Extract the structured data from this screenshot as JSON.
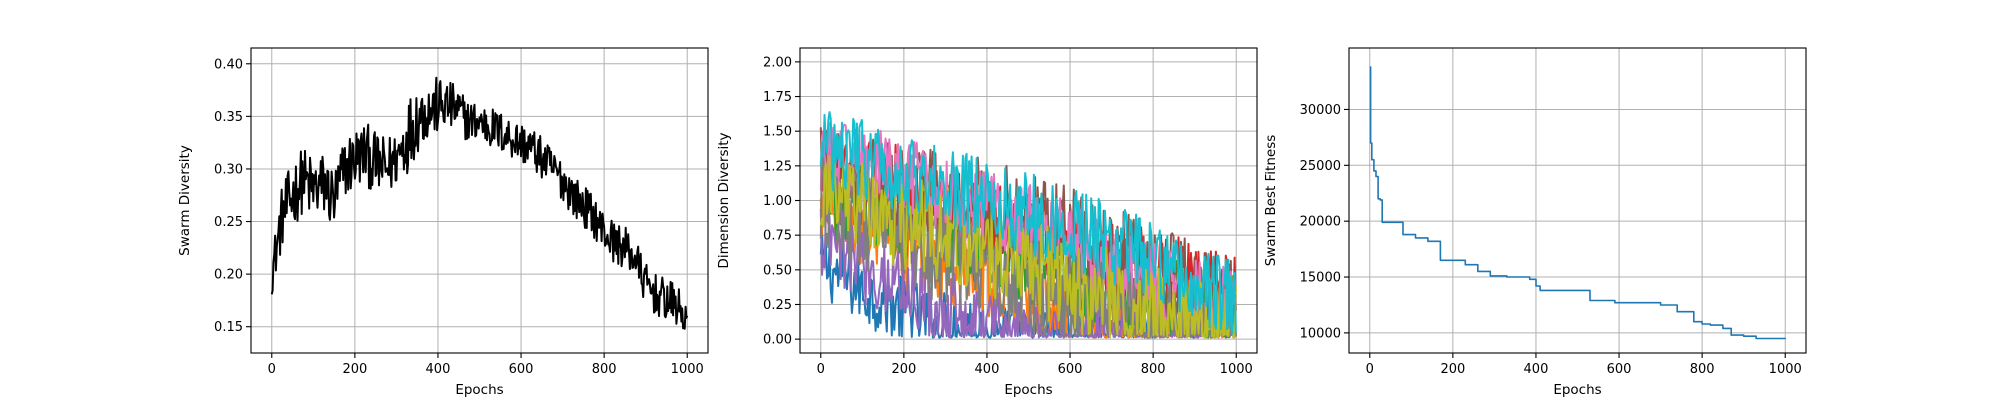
{
  "chart_data": [
    {
      "type": "line",
      "xlabel": "Epochs",
      "ylabel": "Swarm Diversity",
      "xlim": [
        -50,
        1050
      ],
      "ylim": [
        0.125,
        0.415
      ],
      "xticks": [
        0,
        200,
        400,
        600,
        800,
        1000
      ],
      "yticks": [
        0.15,
        0.2,
        0.25,
        0.3,
        0.35,
        0.4
      ],
      "ytick_labels": [
        "0.15",
        "0.20",
        "0.25",
        "0.30",
        "0.35",
        "0.40"
      ],
      "grid": true,
      "colors": {
        "line": "#000000"
      },
      "series": [
        {
          "x": [
            0,
            25,
            50,
            75,
            100,
            125,
            150,
            175,
            200,
            225,
            250,
            275,
            300,
            325,
            350,
            375,
            400,
            425,
            450,
            475,
            500,
            525,
            550,
            575,
            600,
            625,
            650,
            675,
            700,
            725,
            750,
            775,
            800,
            825,
            850,
            875,
            900,
            925,
            950,
            975,
            1000
          ],
          "y": [
            0.2,
            0.255,
            0.275,
            0.29,
            0.28,
            0.285,
            0.27,
            0.3,
            0.31,
            0.315,
            0.305,
            0.3,
            0.31,
            0.33,
            0.35,
            0.355,
            0.36,
            0.36,
            0.355,
            0.345,
            0.345,
            0.34,
            0.335,
            0.33,
            0.325,
            0.32,
            0.31,
            0.3,
            0.29,
            0.275,
            0.265,
            0.255,
            0.24,
            0.23,
            0.225,
            0.215,
            0.19,
            0.18,
            0.175,
            0.17,
            0.155
          ],
          "noise": [
            0.02,
            0.03,
            0.032,
            0.032,
            0.032,
            0.032,
            0.032,
            0.03,
            0.03,
            0.03,
            0.03,
            0.03,
            0.028,
            0.035,
            0.035,
            0.028,
            0.028,
            0.025,
            0.022,
            0.02,
            0.02,
            0.02,
            0.02,
            0.02,
            0.02,
            0.02,
            0.02,
            0.02,
            0.02,
            0.02,
            0.02,
            0.02,
            0.02,
            0.02,
            0.02,
            0.02,
            0.02,
            0.02,
            0.02,
            0.02,
            0.015
          ],
          "min": 0.14,
          "max": 0.405
        }
      ]
    },
    {
      "type": "line",
      "xlabel": "Epochs",
      "ylabel": "Dimension Diversity",
      "xlim": [
        -50,
        1050
      ],
      "ylim": [
        -0.1,
        2.1
      ],
      "xticks": [
        0,
        200,
        400,
        600,
        800,
        1000
      ],
      "yticks": [
        0.0,
        0.25,
        0.5,
        0.75,
        1.0,
        1.25,
        1.5,
        1.75,
        2.0
      ],
      "ytick_labels": [
        "0.00",
        "0.25",
        "0.50",
        "0.75",
        "1.00",
        "1.25",
        "1.50",
        "1.75",
        "2.00"
      ],
      "grid": true,
      "colors": {
        "series": [
          "#1f77b4",
          "#ff7f0e",
          "#2ca02c",
          "#d62728",
          "#9467bd",
          "#8c564b",
          "#e377c2",
          "#7f7f7f",
          "#bcbd22",
          "#17becf"
        ]
      },
      "series": [
        {
          "x": [
            0,
            100,
            200,
            300,
            400,
            500,
            600,
            700,
            800,
            900,
            1000
          ],
          "y": [
            0.55,
            0.35,
            0.2,
            0.1,
            0.05,
            0.03,
            0.02,
            0.02,
            0.02,
            0.02,
            0.02
          ],
          "amp": 0.25
        },
        {
          "x": [
            0,
            100,
            200,
            300,
            400,
            500,
            600,
            700,
            800,
            900,
            1000
          ],
          "y": [
            0.9,
            0.75,
            0.65,
            0.55,
            0.45,
            0.35,
            0.25,
            0.15,
            0.05,
            0.03,
            0.02
          ],
          "amp": 0.3
        },
        {
          "x": [
            0,
            100,
            200,
            300,
            400,
            500,
            600,
            700,
            800,
            900,
            1000
          ],
          "y": [
            1.1,
            1.0,
            0.9,
            0.8,
            0.7,
            0.6,
            0.5,
            0.4,
            0.3,
            0.2,
            0.1
          ],
          "amp": 0.35
        },
        {
          "x": [
            0,
            100,
            200,
            300,
            400,
            500,
            600,
            700,
            800,
            900,
            1000
          ],
          "y": [
            1.3,
            1.2,
            1.1,
            1.0,
            0.9,
            0.8,
            0.7,
            0.6,
            0.5,
            0.4,
            0.3
          ],
          "amp": 0.3
        },
        {
          "x": [
            0,
            100,
            200,
            300,
            400,
            500,
            600,
            700,
            800,
            900,
            1000
          ],
          "y": [
            0.7,
            0.55,
            0.4,
            0.2,
            0.08,
            0.04,
            0.03,
            0.02,
            0.02,
            0.02,
            0.02
          ],
          "amp": 0.3
        },
        {
          "x": [
            0,
            100,
            200,
            300,
            400,
            500,
            600,
            700,
            800,
            900,
            1000
          ],
          "y": [
            1.2,
            1.15,
            1.1,
            1.0,
            0.95,
            0.85,
            0.75,
            0.6,
            0.5,
            0.35,
            0.2
          ],
          "amp": 0.35
        },
        {
          "x": [
            0,
            100,
            200,
            300,
            400,
            500,
            600,
            700,
            800,
            900,
            1000
          ],
          "y": [
            1.35,
            1.25,
            1.15,
            1.05,
            0.95,
            0.85,
            0.7,
            0.55,
            0.4,
            0.3,
            0.2
          ],
          "amp": 0.3
        },
        {
          "x": [
            0,
            100,
            200,
            300,
            400,
            500,
            600,
            700,
            800,
            900,
            1000
          ],
          "y": [
            1.0,
            0.85,
            0.7,
            0.6,
            0.5,
            0.4,
            0.3,
            0.2,
            0.1,
            0.04,
            0.02
          ],
          "amp": 0.35
        },
        {
          "x": [
            0,
            100,
            200,
            300,
            400,
            500,
            600,
            700,
            800,
            900,
            1000
          ],
          "y": [
            1.05,
            0.95,
            0.85,
            0.75,
            0.65,
            0.55,
            0.4,
            0.3,
            0.2,
            0.1,
            0.05
          ],
          "amp": 0.35
        },
        {
          "x": [
            0,
            100,
            200,
            300,
            400,
            500,
            600,
            700,
            800,
            900,
            1000
          ],
          "y": [
            1.4,
            1.3,
            1.2,
            1.1,
            1.0,
            0.9,
            0.8,
            0.7,
            0.55,
            0.4,
            0.3
          ],
          "amp": 0.3
        }
      ]
    },
    {
      "type": "line",
      "xlabel": "Epochs",
      "ylabel": "Swarm Best Fitness",
      "xlim": [
        -50,
        1050
      ],
      "ylim": [
        8200,
        35500
      ],
      "xticks": [
        0,
        200,
        400,
        600,
        800,
        1000
      ],
      "yticks": [
        10000,
        15000,
        20000,
        25000,
        30000
      ],
      "ytick_labels": [
        "10000",
        "15000",
        "20000",
        "25000",
        "30000"
      ],
      "grid": true,
      "colors": {
        "line": "#1f77b4"
      },
      "series": [
        {
          "step": "post",
          "x": [
            0,
            2,
            5,
            10,
            15,
            20,
            25,
            30,
            80,
            110,
            140,
            170,
            230,
            260,
            290,
            330,
            385,
            400,
            410,
            530,
            590,
            700,
            740,
            780,
            800,
            820,
            850,
            870,
            900,
            930,
            1000
          ],
          "y": [
            33800,
            27000,
            25500,
            24500,
            24000,
            22000,
            21900,
            19900,
            18800,
            18500,
            18200,
            16500,
            16100,
            15500,
            15100,
            15000,
            14800,
            14200,
            13800,
            12900,
            12700,
            12500,
            11900,
            11000,
            10800,
            10700,
            10400,
            9800,
            9700,
            9500,
            9450
          ]
        }
      ]
    }
  ]
}
